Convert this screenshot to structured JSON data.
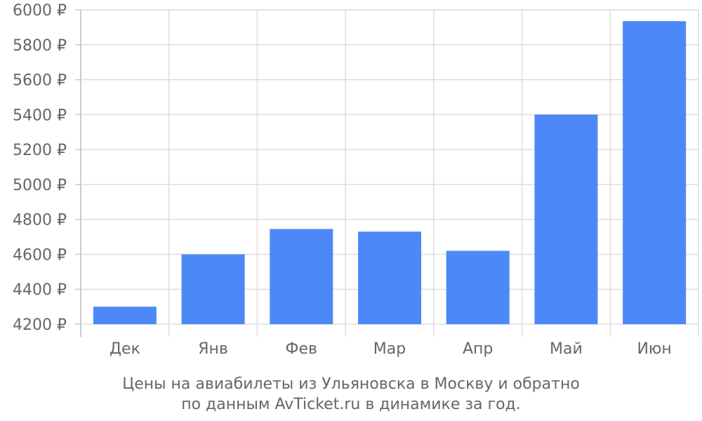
{
  "chart_data": {
    "type": "bar",
    "categories": [
      "Дек",
      "Янв",
      "Фев",
      "Мар",
      "Апр",
      "Май",
      "Июн"
    ],
    "values": [
      4300,
      4600,
      4745,
      4730,
      4620,
      5400,
      5935
    ],
    "ylim": [
      4200,
      6000
    ],
    "yticks": [
      "4200 ₽",
      "4400 ₽",
      "4600 ₽",
      "4800 ₽",
      "5000 ₽",
      "5200 ₽",
      "5400 ₽",
      "5600 ₽",
      "5800 ₽",
      "6000 ₽"
    ],
    "grid": true,
    "bar_color": "#4c88f7",
    "caption": [
      "Цены на авиабилеты из Ульяновска в Москву и обратно",
      "по данным AvTicket.ru в динамике за год."
    ]
  }
}
